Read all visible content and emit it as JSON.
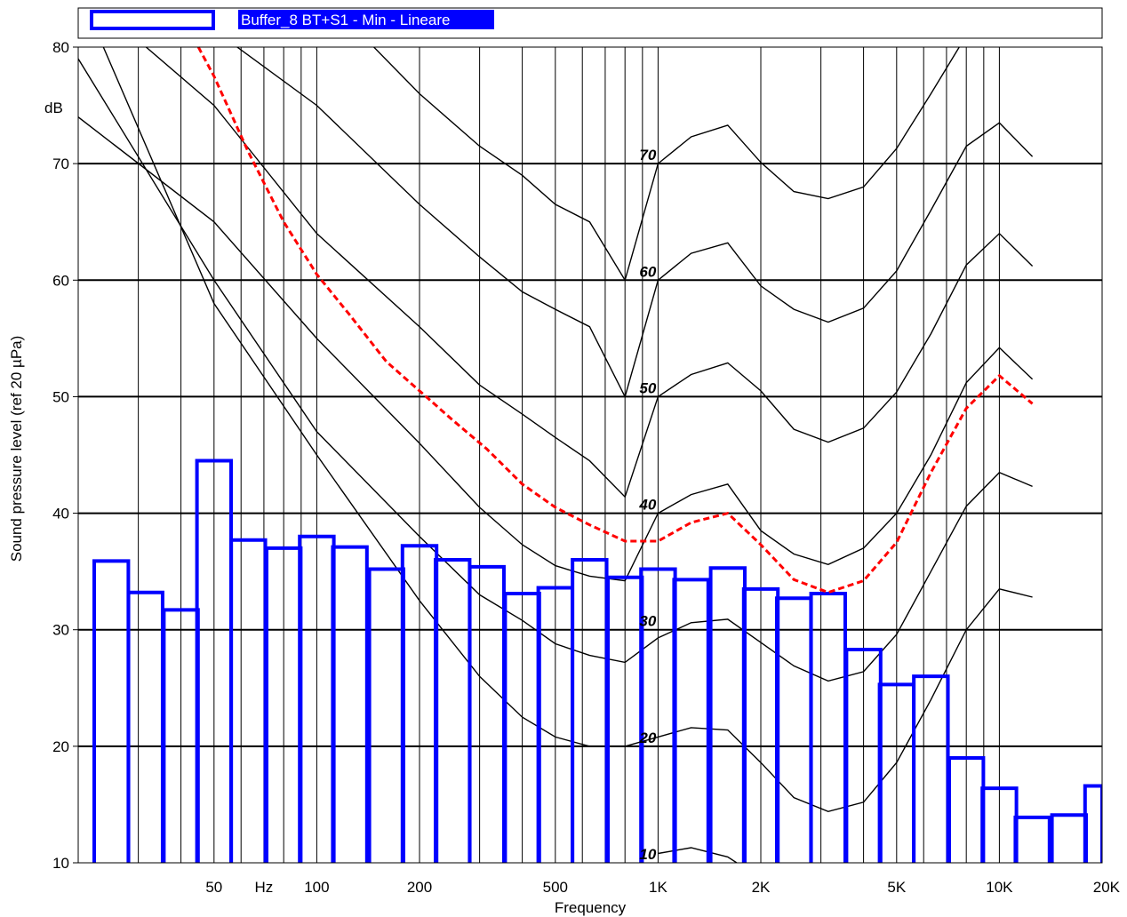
{
  "chart_data": {
    "type": "bar",
    "title": "",
    "xlabel": "Frequency",
    "ylabel": "Sound pressure level (ref 20 µPa)",
    "y_unit": "dB",
    "x_scale": "log",
    "xlim": [
      20,
      20000
    ],
    "ylim": [
      10,
      80
    ],
    "grid": true,
    "legend": {
      "placement": "top",
      "entries": [
        "Buffer_8 BT+S1 - Min - Lineare"
      ]
    },
    "x_tick_labels": [
      {
        "x": 50,
        "label": "50"
      },
      {
        "x": 70,
        "label": "Hz"
      },
      {
        "x": 100,
        "label": "100"
      },
      {
        "x": 200,
        "label": "200"
      },
      {
        "x": 500,
        "label": "500"
      },
      {
        "x": 1000,
        "label": "1K"
      },
      {
        "x": 2000,
        "label": "2K"
      },
      {
        "x": 5000,
        "label": "5K"
      },
      {
        "x": 10000,
        "label": "10K"
      },
      {
        "x": 20000,
        "label": "20K"
      }
    ],
    "y_ticks": [
      10,
      20,
      30,
      40,
      50,
      60,
      70,
      80
    ],
    "colors": {
      "bars": "#0000ff",
      "reference": "#ff0000",
      "contours": "#000000",
      "legend_bg": "#0000ff"
    },
    "series": [
      {
        "name": "Buffer_8 BT+S1 - Min - Lineare",
        "kind": "third-octave bars",
        "bands": [
          {
            "f": 25,
            "value": 35.9
          },
          {
            "f": 31.5,
            "value": 33.2
          },
          {
            "f": 40,
            "value": 31.7
          },
          {
            "f": 50,
            "value": 44.5
          },
          {
            "f": 63,
            "value": 37.7
          },
          {
            "f": 80,
            "value": 37.0
          },
          {
            "f": 100,
            "value": 38.0
          },
          {
            "f": 125,
            "value": 37.1
          },
          {
            "f": 160,
            "value": 35.2
          },
          {
            "f": 200,
            "value": 37.2
          },
          {
            "f": 250,
            "value": 36.0
          },
          {
            "f": 315,
            "value": 35.4
          },
          {
            "f": 400,
            "value": 33.1
          },
          {
            "f": 500,
            "value": 33.6
          },
          {
            "f": 630,
            "value": 36.0
          },
          {
            "f": 800,
            "value": 34.5
          },
          {
            "f": 1000,
            "value": 35.2
          },
          {
            "f": 1250,
            "value": 34.3
          },
          {
            "f": 1600,
            "value": 35.3
          },
          {
            "f": 2000,
            "value": 33.5
          },
          {
            "f": 2500,
            "value": 32.7
          },
          {
            "f": 3150,
            "value": 33.1
          },
          {
            "f": 4000,
            "value": 28.3
          },
          {
            "f": 5000,
            "value": 25.3
          },
          {
            "f": 6300,
            "value": 26.0
          },
          {
            "f": 8000,
            "value": 19.0
          },
          {
            "f": 10000,
            "value": 16.4
          },
          {
            "f": 12500,
            "value": 13.9
          },
          {
            "f": 16000,
            "value": 14.1
          },
          {
            "f": 20000,
            "value": 16.6
          }
        ]
      },
      {
        "kind": "reference curve (dashed)",
        "points": [
          [
            45,
            80.0
          ],
          [
            50,
            77.5
          ],
          [
            63,
            71.0
          ],
          [
            80,
            65.0
          ],
          [
            100,
            60.5
          ],
          [
            125,
            57.0
          ],
          [
            160,
            53.0
          ],
          [
            200,
            50.5
          ],
          [
            250,
            48.0
          ],
          [
            315,
            45.5
          ],
          [
            400,
            42.5
          ],
          [
            500,
            40.5
          ],
          [
            630,
            39.0
          ],
          [
            800,
            37.6
          ],
          [
            1000,
            37.6
          ],
          [
            1250,
            39.2
          ],
          [
            1600,
            40.0
          ],
          [
            2000,
            37.3
          ],
          [
            2500,
            34.3
          ],
          [
            3150,
            33.2
          ],
          [
            4000,
            34.2
          ],
          [
            5000,
            37.5
          ],
          [
            6300,
            43.5
          ],
          [
            8000,
            49.0
          ],
          [
            10000,
            51.8
          ],
          [
            12500,
            49.4
          ]
        ]
      }
    ],
    "contours": [
      {
        "label": "10",
        "points": [
          [
            1000,
            10.8
          ],
          [
            1250,
            11.3
          ],
          [
            1600,
            10.5
          ],
          [
            1700,
            10.0
          ]
        ]
      },
      {
        "label": "20",
        "points": [
          [
            20,
            85.0
          ],
          [
            50,
            58.0
          ],
          [
            100,
            45.0
          ],
          [
            200,
            32.5
          ],
          [
            300,
            26.0
          ],
          [
            400,
            22.5
          ],
          [
            500,
            20.8
          ],
          [
            630,
            20.0
          ],
          [
            800,
            20.0
          ],
          [
            1000,
            20.8
          ],
          [
            1250,
            21.6
          ],
          [
            1600,
            21.4
          ],
          [
            2000,
            18.6
          ],
          [
            2500,
            15.6
          ],
          [
            3150,
            14.4
          ],
          [
            4000,
            15.2
          ],
          [
            5000,
            18.6
          ],
          [
            6300,
            24.0
          ],
          [
            8000,
            30.0
          ],
          [
            10000,
            33.5
          ],
          [
            12500,
            32.8
          ]
        ]
      },
      {
        "label": "30",
        "points": [
          [
            20,
            79.0
          ],
          [
            50,
            60.0
          ],
          [
            100,
            47.0
          ],
          [
            200,
            38.0
          ],
          [
            300,
            33.0
          ],
          [
            400,
            30.8
          ],
          [
            500,
            28.8
          ],
          [
            630,
            27.8
          ],
          [
            800,
            27.2
          ],
          [
            1000,
            29.3
          ],
          [
            1250,
            30.6
          ],
          [
            1600,
            30.9
          ],
          [
            2000,
            28.9
          ],
          [
            2500,
            26.9
          ],
          [
            3150,
            25.6
          ],
          [
            4000,
            26.4
          ],
          [
            5000,
            29.6
          ],
          [
            6300,
            35.0
          ],
          [
            8000,
            40.6
          ],
          [
            10000,
            43.5
          ],
          [
            12500,
            42.3
          ]
        ]
      },
      {
        "label": "40",
        "points": [
          [
            20,
            74.0
          ],
          [
            50,
            65.0
          ],
          [
            100,
            55.0
          ],
          [
            200,
            46.0
          ],
          [
            300,
            40.5
          ],
          [
            400,
            37.3
          ],
          [
            500,
            35.5
          ],
          [
            630,
            34.6
          ],
          [
            800,
            34.2
          ],
          [
            1000,
            40.0
          ],
          [
            1250,
            41.6
          ],
          [
            1600,
            42.5
          ],
          [
            2000,
            38.5
          ],
          [
            2500,
            36.5
          ],
          [
            3150,
            35.6
          ],
          [
            4000,
            37.0
          ],
          [
            5000,
            40.0
          ],
          [
            6300,
            45.0
          ],
          [
            8000,
            51.2
          ],
          [
            10000,
            54.2
          ],
          [
            12500,
            51.5
          ]
        ]
      },
      {
        "label": "50",
        "points": [
          [
            20,
            85.0
          ],
          [
            50,
            75.0
          ],
          [
            100,
            64.0
          ],
          [
            200,
            56.0
          ],
          [
            300,
            51.0
          ],
          [
            400,
            48.5
          ],
          [
            500,
            46.5
          ],
          [
            630,
            44.5
          ],
          [
            800,
            41.4
          ],
          [
            1000,
            50.0
          ],
          [
            1250,
            51.9
          ],
          [
            1600,
            52.9
          ],
          [
            2000,
            50.5
          ],
          [
            2500,
            47.2
          ],
          [
            3150,
            46.1
          ],
          [
            4000,
            47.3
          ],
          [
            5000,
            50.4
          ],
          [
            6300,
            55.4
          ],
          [
            8000,
            61.3
          ],
          [
            10000,
            64.0
          ],
          [
            12500,
            61.2
          ]
        ]
      },
      {
        "label": "60",
        "points": [
          [
            20,
            90.0
          ],
          [
            100,
            75.0
          ],
          [
            200,
            66.5
          ],
          [
            300,
            62.0
          ],
          [
            400,
            59.0
          ],
          [
            500,
            57.5
          ],
          [
            630,
            56.0
          ],
          [
            800,
            50.0
          ],
          [
            1000,
            60.0
          ],
          [
            1250,
            62.3
          ],
          [
            1600,
            63.2
          ],
          [
            2000,
            59.5
          ],
          [
            2500,
            57.5
          ],
          [
            3150,
            56.4
          ],
          [
            4000,
            57.6
          ],
          [
            5000,
            60.8
          ],
          [
            6300,
            66.0
          ],
          [
            8000,
            71.5
          ],
          [
            10000,
            73.5
          ],
          [
            12500,
            70.6
          ]
        ]
      },
      {
        "label": "70",
        "points": [
          [
            20,
            95.0
          ],
          [
            100,
            85.0
          ],
          [
            200,
            76.0
          ],
          [
            300,
            71.5
          ],
          [
            400,
            69.0
          ],
          [
            500,
            66.5
          ],
          [
            630,
            65.0
          ],
          [
            800,
            60.0
          ],
          [
            1000,
            70.0
          ],
          [
            1250,
            72.3
          ],
          [
            1600,
            73.3
          ],
          [
            2000,
            70.1
          ],
          [
            2500,
            67.6
          ],
          [
            3150,
            67.0
          ],
          [
            4000,
            68.0
          ],
          [
            5000,
            71.3
          ],
          [
            6300,
            76.0
          ],
          [
            8000,
            81.0
          ],
          [
            10000,
            83.0
          ],
          [
            12500,
            80.0
          ]
        ]
      }
    ]
  }
}
